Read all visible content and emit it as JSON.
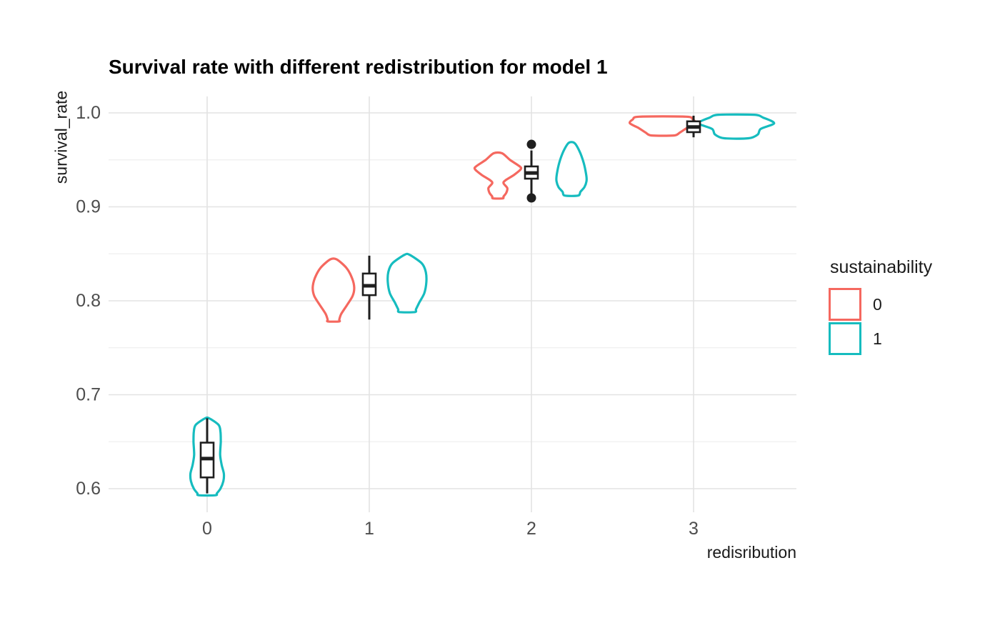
{
  "chart_data": {
    "type": "violin",
    "title": "Survival rate with different redistribution for model 1",
    "xlabel": "redisribution",
    "ylabel": "survival_rate",
    "x_categories": [
      "0",
      "1",
      "2",
      "3"
    ],
    "y_ticks_major": [
      0.6,
      0.7,
      0.8,
      0.9,
      1.0
    ],
    "y_ticks_minor": [
      0.65,
      0.75,
      0.85,
      0.95
    ],
    "ylim": [
      0.575,
      1.0175
    ],
    "grid": true,
    "legend": {
      "title": "sustainability",
      "position": "right",
      "items": [
        {
          "label": "0",
          "color": "#f5685f"
        },
        {
          "label": "1",
          "color": "#16bcbf"
        }
      ]
    },
    "violins": [
      {
        "redistribution": "0",
        "sustainability": "1",
        "color": "#16bcbf",
        "offset": 0.0,
        "profile": [
          [
            0.675,
            0.012
          ],
          [
            0.668,
            0.07
          ],
          [
            0.661,
            0.082
          ],
          [
            0.65,
            0.084
          ],
          [
            0.636,
            0.08
          ],
          [
            0.625,
            0.09
          ],
          [
            0.616,
            0.103
          ],
          [
            0.608,
            0.1
          ],
          [
            0.6,
            0.082
          ],
          [
            0.595,
            0.06
          ],
          [
            0.593,
            0.052
          ]
        ]
      },
      {
        "redistribution": "1",
        "sustainability": "0",
        "color": "#f5685f",
        "offset": -0.221,
        "profile": [
          [
            0.844,
            0.02
          ],
          [
            0.835,
            0.08
          ],
          [
            0.824,
            0.115
          ],
          [
            0.814,
            0.128
          ],
          [
            0.805,
            0.118
          ],
          [
            0.795,
            0.082
          ],
          [
            0.786,
            0.048
          ],
          [
            0.78,
            0.036
          ],
          [
            0.778,
            0.035
          ]
        ]
      },
      {
        "redistribution": "1",
        "sustainability": "1",
        "color": "#16bcbf",
        "offset": 0.233,
        "profile": [
          [
            0.849,
            0.015
          ],
          [
            0.84,
            0.09
          ],
          [
            0.831,
            0.115
          ],
          [
            0.82,
            0.119
          ],
          [
            0.808,
            0.106
          ],
          [
            0.798,
            0.075
          ],
          [
            0.791,
            0.055
          ],
          [
            0.788,
            0.048
          ]
        ]
      },
      {
        "redistribution": "2",
        "sustainability": "0",
        "color": "#f5685f",
        "offset": -0.207,
        "profile": [
          [
            0.957,
            0.026
          ],
          [
            0.95,
            0.075
          ],
          [
            0.943,
            0.135
          ],
          [
            0.94,
            0.141
          ],
          [
            0.934,
            0.1
          ],
          [
            0.928,
            0.045
          ],
          [
            0.925,
            0.035
          ],
          [
            0.92,
            0.058
          ],
          [
            0.915,
            0.052
          ],
          [
            0.911,
            0.035
          ],
          [
            0.909,
            0.03
          ]
        ]
      },
      {
        "redistribution": "2",
        "sustainability": "1",
        "color": "#16bcbf",
        "offset": 0.247,
        "profile": [
          [
            0.968,
            0.018
          ],
          [
            0.959,
            0.05
          ],
          [
            0.947,
            0.075
          ],
          [
            0.935,
            0.09
          ],
          [
            0.928,
            0.093
          ],
          [
            0.921,
            0.08
          ],
          [
            0.916,
            0.055
          ],
          [
            0.912,
            0.042
          ]
        ]
      },
      {
        "redistribution": "3",
        "sustainability": "0",
        "color": "#f5685f",
        "offset": -0.19,
        "profile": [
          [
            0.996,
            0.145
          ],
          [
            0.993,
            0.185
          ],
          [
            0.989,
            0.203
          ],
          [
            0.984,
            0.15
          ],
          [
            0.979,
            0.105
          ],
          [
            0.976,
            0.07
          ]
        ]
      },
      {
        "redistribution": "3",
        "sustainability": "1",
        "color": "#16bcbf",
        "offset": 0.264,
        "profile": [
          [
            0.998,
            0.11
          ],
          [
            0.995,
            0.165
          ],
          [
            0.989,
            0.233
          ],
          [
            0.983,
            0.15
          ],
          [
            0.977,
            0.132
          ],
          [
            0.973,
            0.075
          ]
        ]
      }
    ],
    "boxplots": [
      {
        "redistribution": "0",
        "whisker_low": 0.595,
        "q1": 0.612,
        "median": 0.632,
        "q3": 0.649,
        "whisker_high": 0.675,
        "outliers": []
      },
      {
        "redistribution": "1",
        "whisker_low": 0.78,
        "q1": 0.806,
        "median": 0.816,
        "q3": 0.829,
        "whisker_high": 0.848,
        "outliers": []
      },
      {
        "redistribution": "2",
        "whisker_low": 0.912,
        "q1": 0.93,
        "median": 0.936,
        "q3": 0.943,
        "whisker_high": 0.96,
        "outliers": [
          0.9665,
          0.9095
        ]
      },
      {
        "redistribution": "3",
        "whisker_low": 0.974,
        "q1": 0.9795,
        "median": 0.985,
        "q3": 0.991,
        "whisker_high": 0.997,
        "outliers": []
      }
    ]
  },
  "colors": {
    "red": "#f5685f",
    "teal": "#16bcbf",
    "box": "#1f1f1f",
    "grid_major": "#e3e3e3",
    "grid_minor": "#efefef",
    "tick_text": "#4d4d4d",
    "axis_title_text": "#1a1a1a"
  }
}
